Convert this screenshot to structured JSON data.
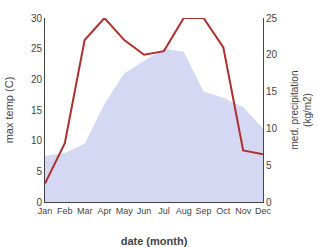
{
  "chart_data": {
    "type": "combo",
    "xlabel": "date (month)",
    "ylabel": "max temp (C)",
    "y2label": "med. precipitation\n(kg/m2)",
    "categories": [
      "Jan",
      "Feb",
      "Mar",
      "Apr",
      "May",
      "Jun",
      "Jul",
      "Aug",
      "Sep",
      "Oct",
      "Nov",
      "Dec"
    ],
    "series": [
      {
        "type": "area",
        "color": "#b0b8e8",
        "values": [
          7.5,
          8.0,
          9.5,
          16.0,
          21.0,
          23.0,
          25.0,
          24.5,
          18.0,
          17.0,
          15.5,
          12.0
        ]
      },
      {
        "type": "line",
        "color": "#b03030",
        "axis": "y2",
        "values": [
          2.5,
          8.0,
          22.0,
          25.0,
          22.0,
          20.0,
          20.5,
          25.0,
          25.0,
          21.0,
          7.0,
          6.5
        ]
      }
    ],
    "ylim": [
      0,
      30
    ],
    "yticks": [
      0,
      5,
      10,
      15,
      20,
      25,
      30
    ],
    "y2lim": [
      0,
      25
    ],
    "y2ticks": [
      0,
      5,
      10,
      15,
      20,
      25
    ],
    "grid": false
  }
}
